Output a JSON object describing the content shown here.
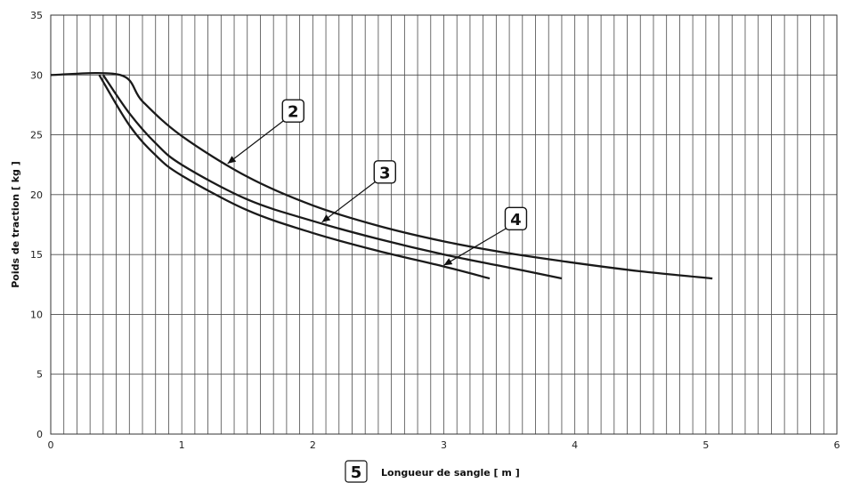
{
  "chart_data": {
    "type": "line",
    "xlabel": "Longueur de sangle [ m ]",
    "ylabel": "Poids de traction [ kg ]",
    "xlim": [
      0,
      6
    ],
    "ylim": [
      0,
      35
    ],
    "x_ticks": [
      "0",
      "1",
      "2",
      "3",
      "4",
      "5",
      "6"
    ],
    "y_ticks": [
      "0",
      "5",
      "10",
      "15",
      "20",
      "25",
      "30",
      "35"
    ],
    "grid": true,
    "series": [
      {
        "name": "2",
        "x": [
          0,
          0.53,
          0.7,
          1.0,
          1.5,
          2.0,
          2.5,
          3.0,
          3.5,
          4.0,
          4.5,
          5.05
        ],
        "y": [
          30,
          30,
          27.8,
          24.9,
          21.5,
          19.1,
          17.4,
          16.1,
          15.1,
          14.3,
          13.6,
          13.0
        ]
      },
      {
        "name": "3",
        "x": [
          0.4,
          0.6,
          0.8,
          1.0,
          1.5,
          2.0,
          2.5,
          3.0,
          3.5,
          3.9
        ],
        "y": [
          30,
          26.8,
          24.3,
          22.5,
          19.6,
          17.8,
          16.3,
          15.0,
          13.9,
          13.0
        ]
      },
      {
        "name": "4",
        "x": [
          0.37,
          0.6,
          0.8,
          1.0,
          1.5,
          2.0,
          2.5,
          3.0,
          3.35
        ],
        "y": [
          30,
          25.8,
          23.3,
          21.6,
          18.7,
          16.8,
          15.3,
          14.0,
          13.0
        ]
      }
    ],
    "callouts": [
      "2",
      "3",
      "4"
    ],
    "axis_marker": "5"
  }
}
